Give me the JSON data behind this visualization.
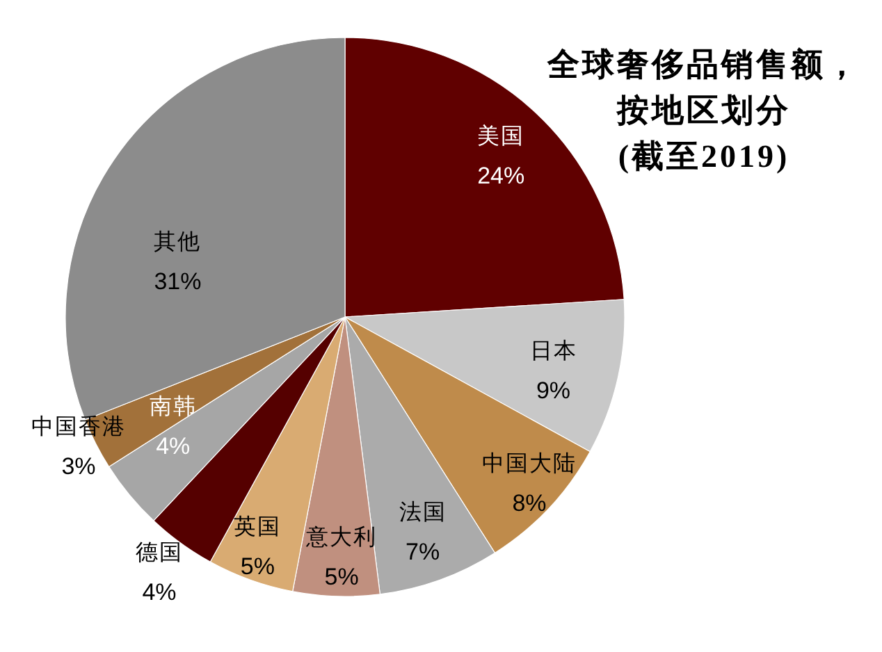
{
  "chart_data": {
    "type": "pie",
    "title": "全球奢侈品销售额，按地区划分",
    "subtitle": "(截至2019)",
    "categories": [
      "美国",
      "日本",
      "中国大陆",
      "法国",
      "意大利",
      "英国",
      "德国",
      "南韩",
      "中国香港",
      "其他"
    ],
    "values": [
      24,
      9,
      8,
      7,
      5,
      5,
      4,
      4,
      3,
      31
    ],
    "value_labels": [
      "24%",
      "9%",
      "8%",
      "7%",
      "5%",
      "5%",
      "4%",
      "4%",
      "3%",
      "31%"
    ],
    "colors": [
      "#600000",
      "#c8c8c8",
      "#bf8b4b",
      "#ababab",
      "#c0907f",
      "#d9ab72",
      "#550000",
      "#a6a6a6",
      "#a2713a",
      "#8c8c8c"
    ]
  }
}
